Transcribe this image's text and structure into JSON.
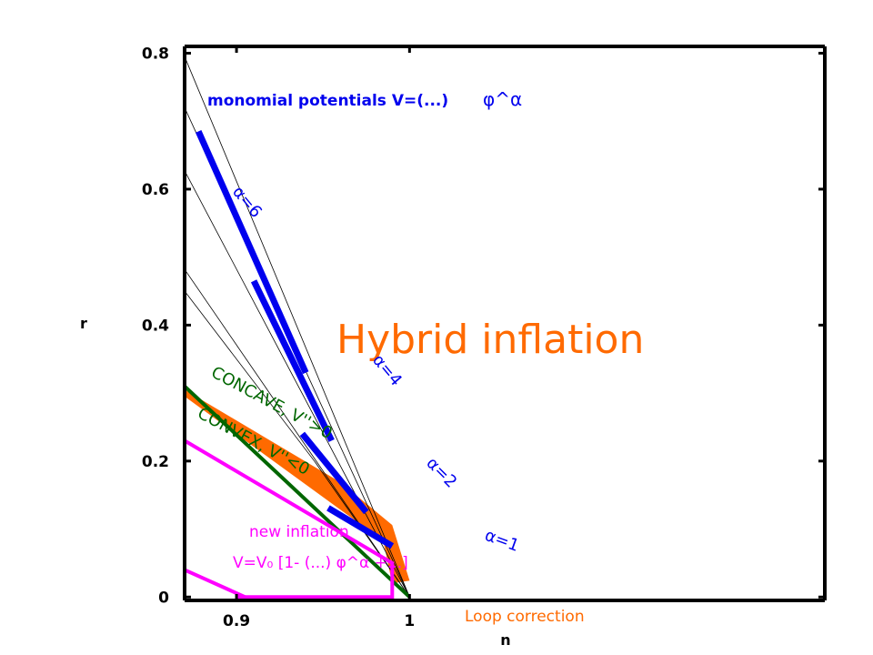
{
  "chart_data": {
    "type": "line",
    "xlabel": "n",
    "ylabel": "r",
    "xlim": [
      0.87,
      1.24
    ],
    "ylim": [
      -0.005,
      0.81
    ],
    "x_ticks": [
      {
        "value": 0.9,
        "label": "0.9"
      },
      {
        "value": 1,
        "label": "1"
      }
    ],
    "y_ticks": [
      {
        "value": 0,
        "label": "0"
      },
      {
        "value": 0.2,
        "label": "0.2"
      },
      {
        "value": 0.4,
        "label": "0.4"
      },
      {
        "value": 0.6,
        "label": "0.6"
      },
      {
        "value": 0.8,
        "label": "0.8"
      }
    ],
    "grid": false,
    "regions": [
      {
        "name": "Hybrid inflation",
        "fill": "#ff6a00",
        "points": [
          [
            0.87,
            0.305
          ],
          [
            0.96,
            0.169
          ],
          [
            0.99,
            0.106
          ],
          [
            1.0,
            0.024
          ],
          [
            0.99,
            0.02
          ],
          [
            0.985,
            0.08
          ],
          [
            0.97,
            0.11
          ],
          [
            0.87,
            0.295
          ]
        ]
      }
    ],
    "reference_lines": [
      {
        "name": "alpha-10",
        "points": [
          [
            0.87,
            0.795
          ],
          [
            1.0,
            0
          ]
        ]
      },
      {
        "name": "alpha-8",
        "points": [
          [
            0.87,
            0.72
          ],
          [
            1.0,
            0
          ]
        ]
      },
      {
        "name": "alpha-6",
        "points": [
          [
            0.87,
            0.627
          ],
          [
            1.0,
            0
          ]
        ]
      },
      {
        "name": "alpha-4",
        "points": [
          [
            0.87,
            0.482
          ],
          [
            1.0,
            0
          ]
        ]
      },
      {
        "name": "alpha-2",
        "points": [
          [
            0.87,
            0.45
          ],
          [
            0.945,
            0.2
          ],
          [
            1.0,
            0
          ]
        ]
      }
    ],
    "series": [
      {
        "name": "CONCAVE, V''>0",
        "color": "#006600",
        "width": 4,
        "points": [
          [
            0.87,
            0.31
          ],
          [
            1.0,
            0
          ]
        ]
      },
      {
        "name": "new inflation",
        "color": "#ff00ff",
        "width": 4,
        "points": [
          [
            0.87,
            0.23
          ],
          [
            0.99,
            0.05
          ],
          [
            0.99,
            0.0
          ],
          [
            0.9,
            0.0
          ]
        ]
      },
      {
        "name": "new inflation lower",
        "color": "#ff00ff",
        "width": 4,
        "points": [
          [
            0.87,
            0.04
          ],
          [
            0.905,
            0.0
          ]
        ]
      }
    ],
    "highlight_segments": [
      {
        "label": "α=6",
        "color": "#0000ee",
        "points": [
          [
            0.878,
            0.685
          ],
          [
            0.94,
            0.33
          ]
        ]
      },
      {
        "label": "α=4",
        "color": "#0000ee",
        "points": [
          [
            0.91,
            0.465
          ],
          [
            0.955,
            0.23
          ]
        ]
      },
      {
        "label": "α=2",
        "color": "#0000ee",
        "points": [
          [
            0.938,
            0.24
          ],
          [
            0.975,
            0.125
          ]
        ]
      },
      {
        "label": "α=1",
        "color": "#0000ee",
        "points": [
          [
            0.953,
            0.131
          ],
          [
            0.99,
            0.075
          ]
        ]
      }
    ],
    "annotations": {
      "monomial": {
        "text": "monomial potentials V=(...) ",
        "suffix": "φ^α",
        "color": "#0000ee"
      },
      "hybrid": {
        "text": "Hybrid inflation",
        "color": "#ff6a00"
      },
      "concave": {
        "text": "CONCAVE, V''>0",
        "color": "#006600"
      },
      "convex": {
        "text": "CONVEX, V''<0",
        "color": "#006600"
      },
      "new_inflation": {
        "text": "new inflation",
        "color": "#ff00ff"
      },
      "new_inflation_formula": {
        "text": "V=V₀ [1- (...) φ^α +...]",
        "color": "#ff00ff"
      },
      "loop": {
        "text": "Loop correction",
        "color": "#ff6a00"
      },
      "alpha6": {
        "text": "α=6",
        "color": "#0000ee"
      },
      "alpha4": {
        "text": "α=4",
        "color": "#0000ee"
      },
      "alpha2": {
        "text": "α=2",
        "color": "#0000ee"
      },
      "alpha1": {
        "text": "α=1",
        "color": "#0000ee"
      }
    }
  }
}
